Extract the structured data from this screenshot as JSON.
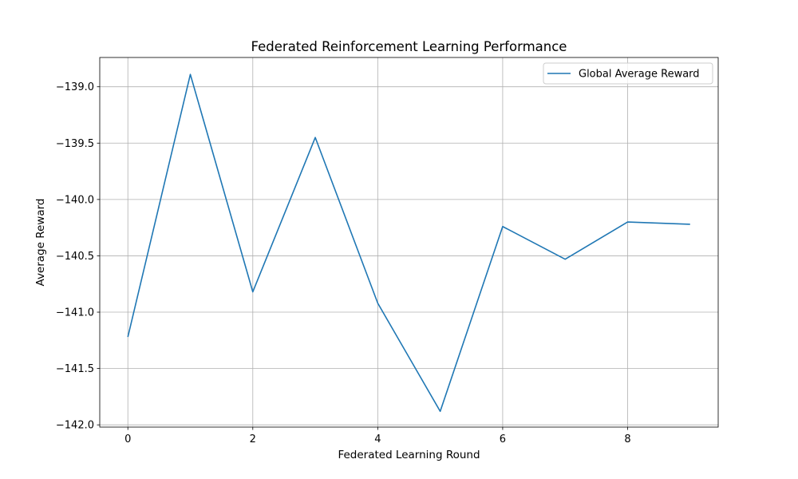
{
  "chart_data": {
    "type": "line",
    "title": "Federated Reinforcement Learning Performance",
    "xlabel": "Federated Learning Round",
    "ylabel": "Average Reward",
    "x": [
      0,
      1,
      2,
      3,
      4,
      5,
      6,
      7,
      8,
      9
    ],
    "series": [
      {
        "name": "Global Average Reward",
        "color": "#1f77b4",
        "values": [
          -141.22,
          -138.89,
          -140.82,
          -139.45,
          -140.92,
          -141.88,
          -140.24,
          -140.53,
          -140.2,
          -140.22
        ]
      }
    ],
    "xlim": [
      -0.45,
      9.45
    ],
    "ylim": [
      -142.02,
      -138.74
    ],
    "xticks": [
      0,
      2,
      4,
      6,
      8
    ],
    "xtick_labels": [
      "0",
      "2",
      "4",
      "6",
      "8"
    ],
    "yticks": [
      -142.0,
      -141.5,
      -141.0,
      -140.5,
      -140.0,
      -139.5,
      -139.0
    ],
    "ytick_labels": [
      "−142.0",
      "−141.5",
      "−141.0",
      "−140.5",
      "−140.0",
      "−139.5",
      "−139.0"
    ],
    "grid": true,
    "legend_position": "top-right"
  }
}
